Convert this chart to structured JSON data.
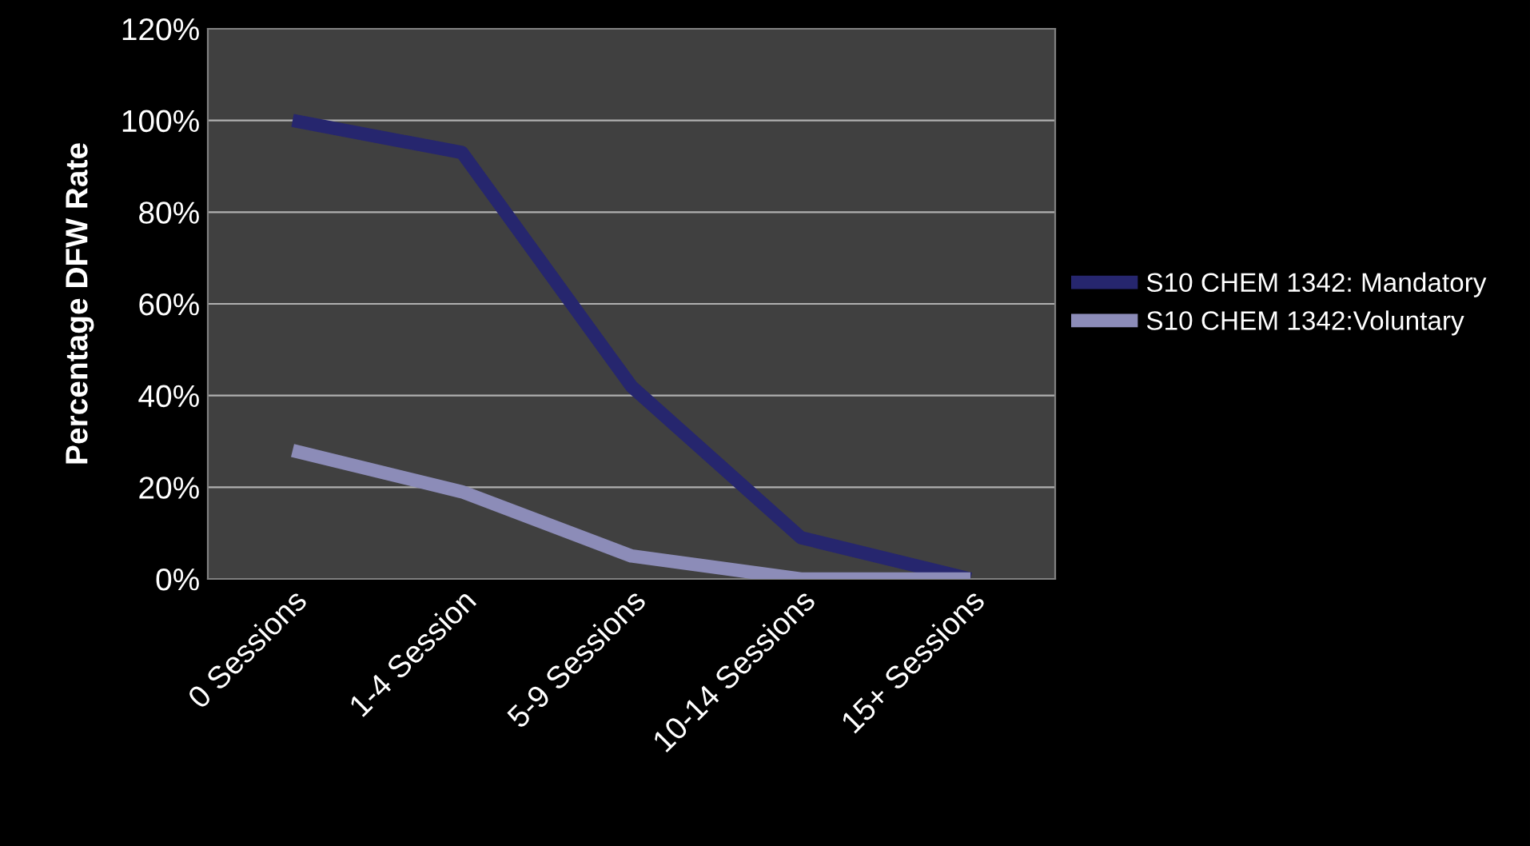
{
  "chart_data": {
    "type": "line",
    "ylabel": "Percentage DFW Rate",
    "categories": [
      "0 Sessions",
      "1-4 Session",
      "5-9 Sessions",
      "10-14 Sessions",
      "15+ Sessions"
    ],
    "series": [
      {
        "name": "S10 CHEM 1342: Mandatory",
        "color": "#26266e",
        "values": [
          100,
          93,
          42,
          9,
          0
        ]
      },
      {
        "name": "S10 CHEM 1342:Voluntary",
        "color": "#8c8cb8",
        "values": [
          28,
          19,
          5,
          0,
          0
        ]
      }
    ],
    "ylim": [
      0,
      120
    ],
    "yticks": [
      {
        "value": 0,
        "label": "0%"
      },
      {
        "value": 20,
        "label": "20%"
      },
      {
        "value": 40,
        "label": "40%"
      },
      {
        "value": 60,
        "label": "60%"
      },
      {
        "value": 80,
        "label": "80%"
      },
      {
        "value": 100,
        "label": "100%"
      },
      {
        "value": 120,
        "label": "120%"
      }
    ],
    "grid": "y",
    "legend": "right",
    "marker": "none",
    "line_style": "solid"
  }
}
